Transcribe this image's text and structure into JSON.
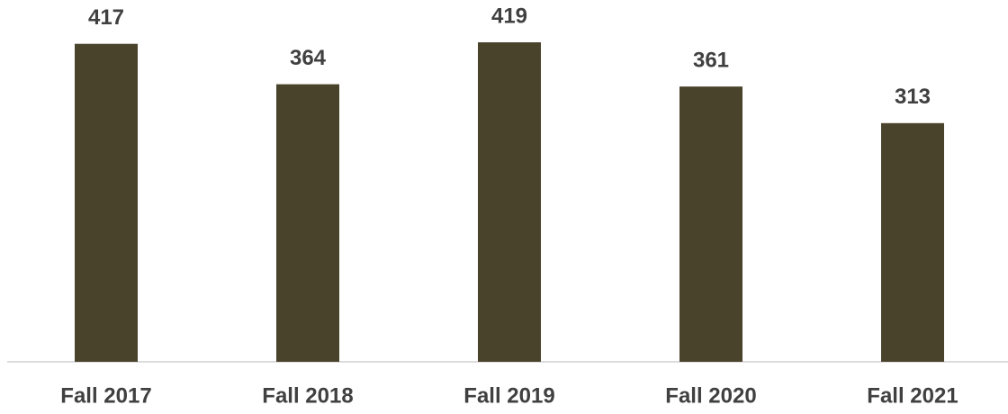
{
  "chart_data": {
    "type": "bar",
    "categories": [
      "Fall 2017",
      "Fall 2018",
      "Fall 2019",
      "Fall 2020",
      "Fall 2021"
    ],
    "values": [
      417,
      364,
      419,
      361,
      313
    ],
    "color": "#4a432b"
  }
}
